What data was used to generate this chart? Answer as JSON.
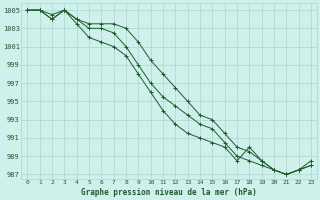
{
  "title": "Graphe pression niveau de la mer (hPa)",
  "bg_color": "#cff0eb",
  "grid_color": "#a8d8d0",
  "line_color": "#1a5c28",
  "xlim": [
    -0.5,
    23.5
  ],
  "ylim": [
    986.5,
    1005.8
  ],
  "yticks": [
    987,
    989,
    991,
    993,
    995,
    997,
    999,
    1001,
    1003,
    1005
  ],
  "xticks": [
    0,
    1,
    2,
    3,
    4,
    5,
    6,
    7,
    8,
    9,
    10,
    11,
    12,
    13,
    14,
    15,
    16,
    17,
    18,
    19,
    20,
    21,
    22,
    23
  ],
  "series": [
    {
      "x": [
        0,
        1,
        2,
        3,
        4,
        5,
        6,
        7,
        8,
        9,
        10,
        11,
        12,
        13,
        14,
        15,
        16,
        17,
        18,
        19,
        20,
        21,
        22,
        23
      ],
      "y": [
        1005,
        1005,
        1004.5,
        1005,
        1004,
        1003.5,
        1003.5,
        1003.5,
        1003,
        1001.5,
        999.5,
        998,
        996.5,
        995,
        993.5,
        993,
        991.5,
        990,
        989.5,
        988.5,
        987.5,
        987,
        987.5,
        988
      ]
    },
    {
      "x": [
        0,
        1,
        2,
        3,
        4,
        5,
        6,
        7,
        8,
        9,
        10,
        11,
        12,
        13,
        14,
        15,
        16,
        17,
        18,
        19,
        20,
        21,
        22,
        23
      ],
      "y": [
        1005,
        1005,
        1004,
        1005,
        1004,
        1003,
        1003,
        1002.5,
        1001,
        999,
        997,
        995.5,
        994.5,
        993.5,
        992.5,
        992,
        990.5,
        989,
        988.5,
        988,
        987.5,
        987,
        987.5,
        988.5
      ]
    },
    {
      "x": [
        0,
        1,
        2,
        3,
        4,
        5,
        6,
        7,
        8,
        9,
        10,
        11,
        12,
        13,
        14,
        15,
        16,
        17,
        18,
        19,
        20,
        21,
        22,
        23
      ],
      "y": [
        1005,
        1005,
        1004,
        1005,
        1003.5,
        1002,
        1001.5,
        1001,
        1000,
        998,
        996,
        994,
        992.5,
        991.5,
        991,
        990.5,
        990,
        988.5,
        990,
        988.5,
        987.5,
        987,
        987.5,
        988
      ]
    }
  ]
}
